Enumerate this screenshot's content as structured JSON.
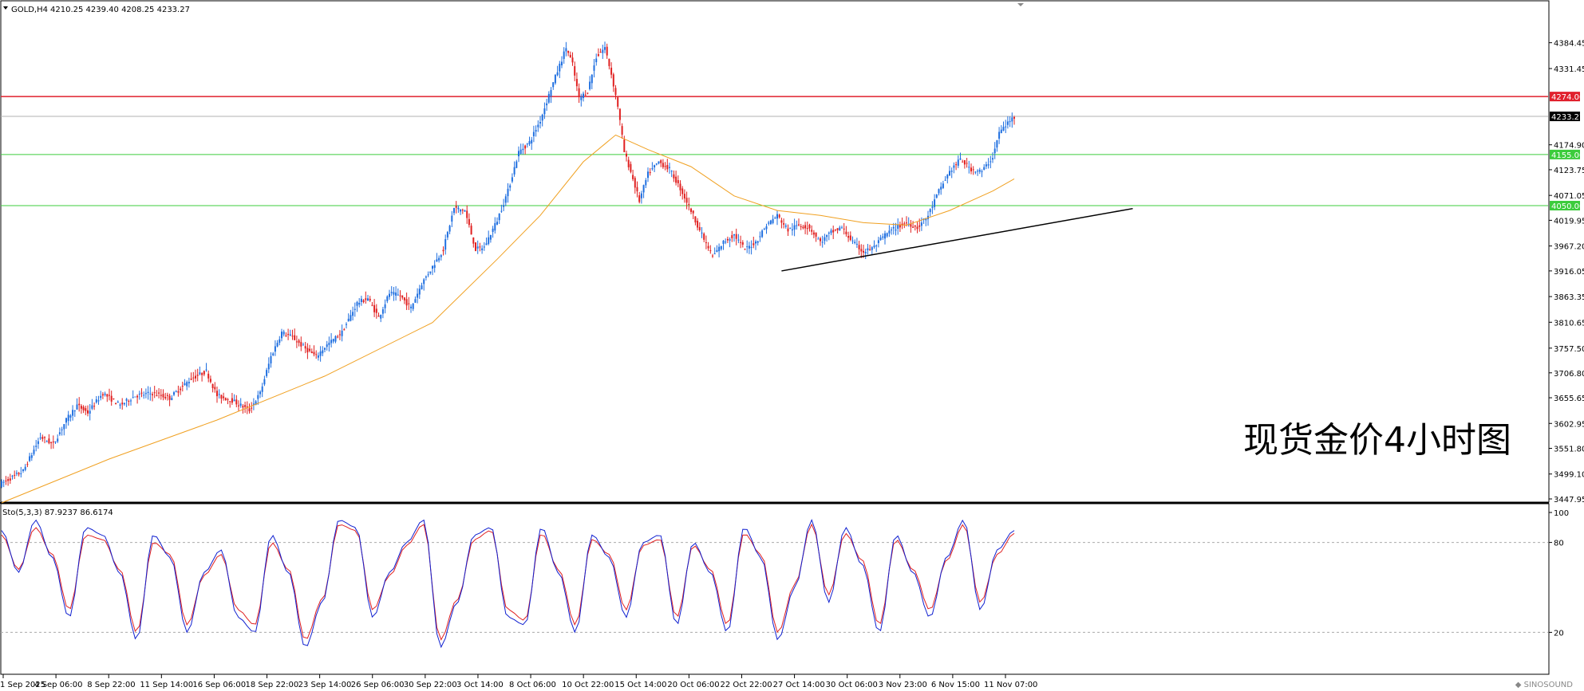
{
  "header": {
    "symbol": "GOLD,H4",
    "ohlc": "4210.25 4239.40 4208.25 4233.27"
  },
  "overlay_title": "现货金价4小时图",
  "logo_text": "SINOSOUND",
  "colors": {
    "bull": "#1f6fe0",
    "bear": "#e02020",
    "ma": "#f0a020",
    "resistance": "#e0202c",
    "support": "#3ccc3c",
    "price_line": "#b0b0b0",
    "stoch_main": "#1020d0",
    "stoch_signal": "#e02020",
    "trendline": "#000000"
  },
  "chart_data": [
    {
      "type": "candlestick",
      "title": "GOLD,H4",
      "ylim": [
        3447.95,
        4410
      ],
      "price_axis_ticks": [
        "4384.45",
        "4331.45",
        "4274.00",
        "4233.27",
        "4174.90",
        "4155.00",
        "4123.75",
        "4071.05",
        "4050.00",
        "4019.95",
        "3967.20",
        "3916.05",
        "3863.35",
        "3810.65",
        "3757.50",
        "3706.80",
        "3655.65",
        "3602.95",
        "3551.80",
        "3499.10",
        "3447.95"
      ],
      "time_labels": [
        "1 Sep 2025",
        "4 Sep 06:00",
        "8 Sep 22:00",
        "11 Sep 14:00",
        "16 Sep 06:00",
        "18 Sep 22:00",
        "23 Sep 14:00",
        "26 Sep 06:00",
        "30 Sep 22:00",
        "3 Oct 14:00",
        "8 Oct 06:00",
        "10 Oct 22:00",
        "15 Oct 14:00",
        "20 Oct 06:00",
        "22 Oct 22:00",
        "27 Oct 14:00",
        "30 Oct 06:00",
        "3 Nov 23:00",
        "6 Nov 15:00",
        "11 Nov 07:00"
      ],
      "horizontal_levels": [
        {
          "price": 4274.0,
          "label": "4274.00",
          "kind": "resistance"
        },
        {
          "price": 4155.0,
          "label": "4155.00",
          "kind": "support"
        },
        {
          "price": 4050.0,
          "label": "4050.00",
          "kind": "support"
        }
      ],
      "current_price": 4233.27,
      "price_path": [
        [
          0,
          3480
        ],
        [
          10,
          3505
        ],
        [
          18,
          3575
        ],
        [
          24,
          3560
        ],
        [
          30,
          3610
        ],
        [
          35,
          3640
        ],
        [
          40,
          3625
        ],
        [
          47,
          3665
        ],
        [
          55,
          3640
        ],
        [
          62,
          3660
        ],
        [
          70,
          3665
        ],
        [
          78,
          3655
        ],
        [
          88,
          3695
        ],
        [
          95,
          3710
        ],
        [
          100,
          3660
        ],
        [
          107,
          3650
        ],
        [
          115,
          3630
        ],
        [
          120,
          3665
        ],
        [
          125,
          3740
        ],
        [
          130,
          3790
        ],
        [
          135,
          3780
        ],
        [
          140,
          3760
        ],
        [
          146,
          3740
        ],
        [
          150,
          3760
        ],
        [
          158,
          3790
        ],
        [
          165,
          3850
        ],
        [
          170,
          3860
        ],
        [
          175,
          3820
        ],
        [
          180,
          3870
        ],
        [
          185,
          3865
        ],
        [
          190,
          3840
        ],
        [
          195,
          3890
        ],
        [
          200,
          3925
        ],
        [
          205,
          3960
        ],
        [
          210,
          4045
        ],
        [
          215,
          4040
        ],
        [
          220,
          3960
        ],
        [
          224,
          3965
        ],
        [
          230,
          4020
        ],
        [
          235,
          4080
        ],
        [
          240,
          4160
        ],
        [
          245,
          4180
        ],
        [
          250,
          4225
        ],
        [
          255,
          4290
        ],
        [
          260,
          4350
        ],
        [
          262,
          4375
        ],
        [
          265,
          4340
        ],
        [
          268,
          4270
        ],
        [
          272,
          4285
        ],
        [
          276,
          4355
        ],
        [
          280,
          4375
        ],
        [
          283,
          4320
        ],
        [
          286,
          4255
        ],
        [
          289,
          4160
        ],
        [
          292,
          4120
        ],
        [
          296,
          4060
        ],
        [
          300,
          4115
        ],
        [
          305,
          4140
        ],
        [
          310,
          4125
        ],
        [
          315,
          4085
        ],
        [
          320,
          4040
        ],
        [
          325,
          3990
        ],
        [
          330,
          3945
        ],
        [
          335,
          3975
        ],
        [
          340,
          3990
        ],
        [
          345,
          3960
        ],
        [
          350,
          3975
        ],
        [
          355,
          4010
        ],
        [
          360,
          4030
        ],
        [
          365,
          4000
        ],
        [
          370,
          4010
        ],
        [
          375,
          4005
        ],
        [
          380,
          3975
        ],
        [
          385,
          3995
        ],
        [
          390,
          4005
        ],
        [
          395,
          3975
        ],
        [
          400,
          3955
        ],
        [
          405,
          3965
        ],
        [
          410,
          3990
        ],
        [
          415,
          4005
        ],
        [
          420,
          4015
        ],
        [
          425,
          4005
        ],
        [
          430,
          4030
        ],
        [
          435,
          4080
        ],
        [
          440,
          4120
        ],
        [
          445,
          4145
        ],
        [
          450,
          4125
        ],
        [
          455,
          4120
        ],
        [
          460,
          4150
        ],
        [
          463,
          4200
        ],
        [
          466,
          4215
        ],
        [
          470,
          4233
        ]
      ],
      "ma_path": [
        [
          0,
          3440
        ],
        [
          50,
          3530
        ],
        [
          100,
          3610
        ],
        [
          150,
          3700
        ],
        [
          200,
          3810
        ],
        [
          230,
          3940
        ],
        [
          250,
          4030
        ],
        [
          270,
          4140
        ],
        [
          285,
          4195
        ],
        [
          300,
          4165
        ],
        [
          320,
          4130
        ],
        [
          340,
          4070
        ],
        [
          360,
          4040
        ],
        [
          380,
          4030
        ],
        [
          400,
          4015
        ],
        [
          420,
          4010
        ],
        [
          440,
          4040
        ],
        [
          460,
          4080
        ],
        [
          470,
          4105
        ]
      ],
      "trendline": {
        "from_price": 3916,
        "to_price": 4044,
        "from_bar": 362,
        "to_bar": 525
      }
    },
    {
      "type": "line",
      "title": "Sto(5,3,3) 87.9237 86.6174",
      "ylim": [
        0,
        100
      ],
      "ticks": [
        "100",
        "80",
        "20"
      ],
      "levels": [
        80,
        20
      ],
      "series": [
        {
          "name": "Sto main",
          "values": [
            88,
            60,
            95,
            70,
            30,
            90,
            85,
            60,
            15,
            85,
            70,
            20,
            60,
            75,
            30,
            20,
            85,
            60,
            10,
            40,
            95,
            90,
            30,
            60,
            80,
            95,
            10,
            40,
            85,
            90,
            30,
            25,
            90,
            60,
            20,
            85,
            70,
            30,
            80,
            85,
            25,
            80,
            60,
            20,
            90,
            70,
            15,
            50,
            95,
            40,
            90,
            65,
            20,
            85,
            60,
            30,
            70,
            95,
            35,
            75,
            88
          ]
        },
        {
          "name": "Sto signal",
          "values": [
            85,
            62,
            90,
            72,
            35,
            85,
            82,
            62,
            20,
            80,
            72,
            25,
            58,
            72,
            35,
            25,
            80,
            62,
            15,
            42,
            92,
            88,
            35,
            58,
            78,
            92,
            15,
            42,
            82,
            88,
            35,
            28,
            86,
            62,
            25,
            82,
            72,
            35,
            78,
            82,
            30,
            78,
            62,
            25,
            86,
            72,
            20,
            52,
            92,
            45,
            86,
            68,
            25,
            82,
            62,
            35,
            68,
            92,
            40,
            72,
            86
          ]
        }
      ]
    }
  ]
}
